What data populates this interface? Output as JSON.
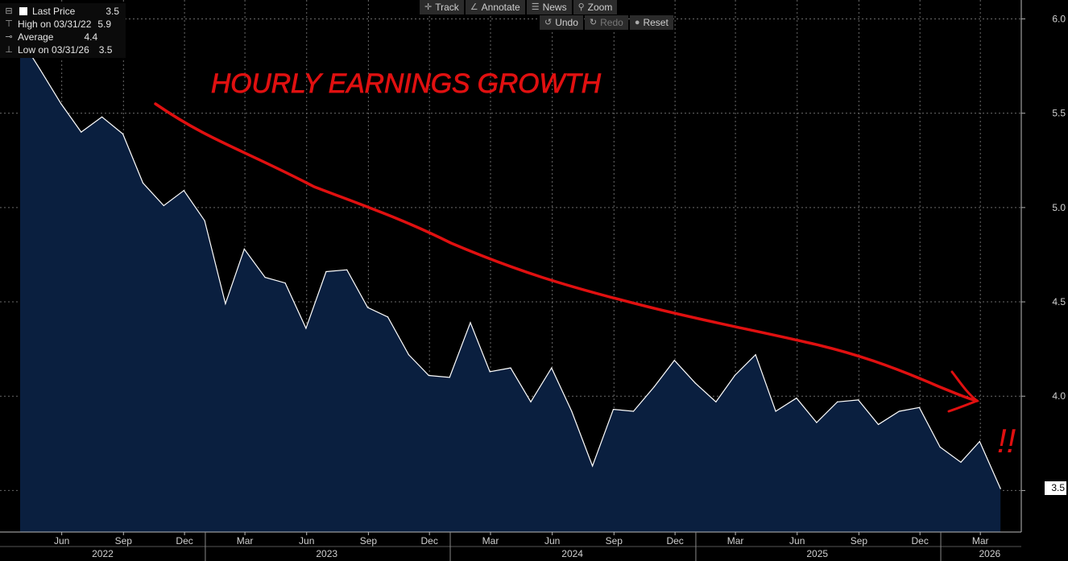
{
  "legend": {
    "last_price": {
      "label": "Last Price",
      "value": "3.5"
    },
    "high": {
      "label": "High on 03/31/22",
      "value": "5.9"
    },
    "average": {
      "label": "Average",
      "value": "4.4"
    },
    "low": {
      "label": "Low on 03/31/26",
      "value": "3.5"
    }
  },
  "toolbar": {
    "track": "Track",
    "annotate": "Annotate",
    "news": "News",
    "zoom": "Zoom",
    "undo": "Undo",
    "redo": "Redo",
    "reset": "Reset"
  },
  "annotation_text": "HOURLY EARNINGS GROWTH",
  "annotation_marks": "!!",
  "last_value_badge": "3.5",
  "colors": {
    "background": "#000000",
    "area_fill": "#0a1f3f",
    "line": "#ffffff",
    "annotation": "#e01010"
  },
  "chart_data": {
    "type": "area",
    "xlabel": "",
    "ylabel": "",
    "ylim": [
      3.28,
      6.1
    ],
    "xlim": [
      "2022-03-01",
      "2026-05-01"
    ],
    "grid": true,
    "y_axis_side": "right",
    "y_ticks": [
      "3.5",
      "4.0",
      "4.5",
      "5.0",
      "5.5",
      "6.0"
    ],
    "x_month_ticks": [
      {
        "date": "2022-06-01",
        "label": "Jun"
      },
      {
        "date": "2022-09-01",
        "label": "Sep"
      },
      {
        "date": "2022-12-01",
        "label": "Dec"
      },
      {
        "date": "2023-03-01",
        "label": "Mar"
      },
      {
        "date": "2023-06-01",
        "label": "Jun"
      },
      {
        "date": "2023-09-01",
        "label": "Sep"
      },
      {
        "date": "2023-12-01",
        "label": "Dec"
      },
      {
        "date": "2024-03-01",
        "label": "Mar"
      },
      {
        "date": "2024-06-01",
        "label": "Jun"
      },
      {
        "date": "2024-09-01",
        "label": "Sep"
      },
      {
        "date": "2024-12-01",
        "label": "Dec"
      },
      {
        "date": "2025-03-01",
        "label": "Mar"
      },
      {
        "date": "2025-06-01",
        "label": "Jun"
      },
      {
        "date": "2025-09-01",
        "label": "Sep"
      },
      {
        "date": "2025-12-01",
        "label": "Dec"
      },
      {
        "date": "2026-03-01",
        "label": "Mar"
      }
    ],
    "x_year_labels": [
      {
        "date": "2022-08-01",
        "label": "2022"
      },
      {
        "date": "2023-07-01",
        "label": "2023"
      },
      {
        "date": "2024-07-01",
        "label": "2024"
      },
      {
        "date": "2025-07-01",
        "label": "2025"
      },
      {
        "date": "2026-03-15",
        "label": "2026"
      }
    ],
    "x_year_separators": [
      "2023-01-01",
      "2024-01-01",
      "2025-01-01",
      "2026-01-01"
    ],
    "series": [
      {
        "x": [
          "2022-03-31",
          "2022-04-30",
          "2022-05-31",
          "2022-06-30",
          "2022-07-31",
          "2022-08-31",
          "2022-09-30",
          "2022-10-31",
          "2022-11-30",
          "2022-12-31",
          "2023-01-31",
          "2023-02-28",
          "2023-03-31",
          "2023-04-30",
          "2023-05-31",
          "2023-06-30",
          "2023-07-31",
          "2023-08-31",
          "2023-09-30",
          "2023-10-31",
          "2023-11-30",
          "2023-12-31",
          "2024-01-31",
          "2024-02-29",
          "2024-03-31",
          "2024-04-30",
          "2024-05-31",
          "2024-06-30",
          "2024-07-31",
          "2024-08-31",
          "2024-09-30",
          "2024-10-31",
          "2024-11-30",
          "2024-12-31",
          "2025-01-31",
          "2025-02-28",
          "2025-03-31",
          "2025-04-30",
          "2025-05-31",
          "2025-06-30",
          "2025-07-31",
          "2025-08-31",
          "2025-09-30",
          "2025-10-31",
          "2025-11-30",
          "2025-12-31",
          "2026-01-31",
          "2026-02-28",
          "2026-03-31"
        ],
        "values": [
          5.9,
          5.73,
          5.55,
          5.4,
          5.48,
          5.39,
          5.13,
          5.01,
          5.09,
          4.93,
          4.49,
          4.78,
          4.63,
          4.6,
          4.36,
          4.66,
          4.67,
          4.47,
          4.42,
          4.22,
          4.11,
          4.1,
          4.39,
          4.13,
          4.15,
          3.97,
          4.15,
          3.92,
          3.63,
          3.93,
          3.92,
          4.05,
          4.19,
          4.07,
          3.97,
          4.11,
          4.22,
          3.92,
          3.99,
          3.86,
          3.97,
          3.98,
          3.85,
          3.92,
          3.94,
          3.73,
          3.65,
          3.76,
          3.51
        ]
      }
    ]
  }
}
